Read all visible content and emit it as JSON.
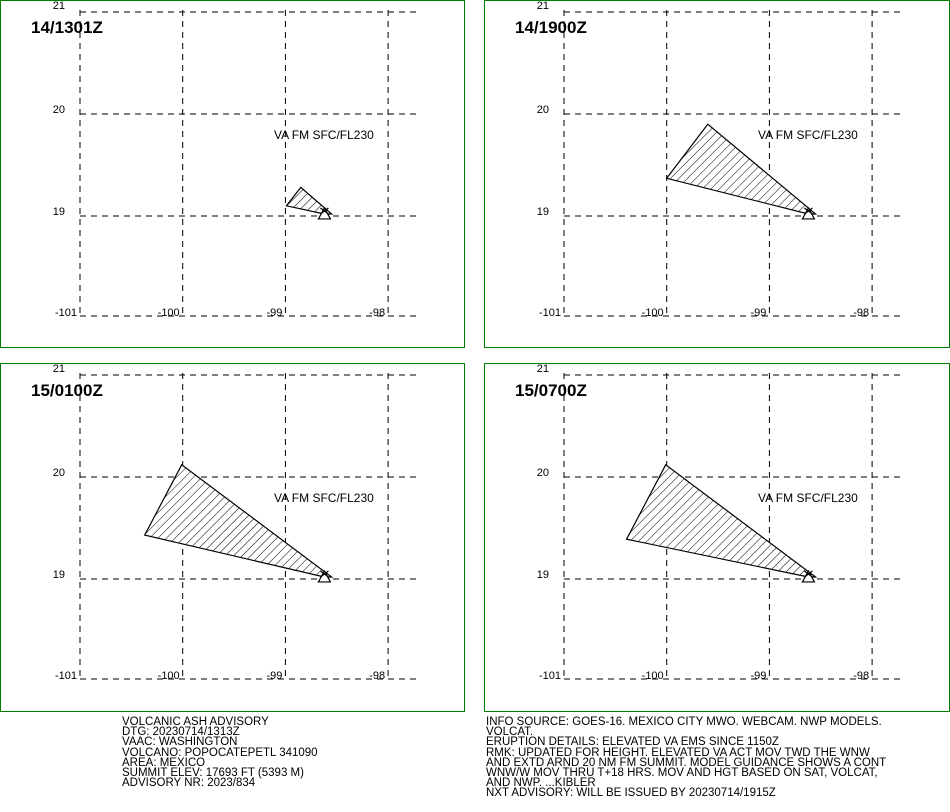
{
  "chart_data": [
    {
      "type": "map",
      "title": "14/1301Z",
      "label": "VA FM SFC/FL230",
      "lon_ticks": [
        "-101",
        "-100",
        "-99",
        "-98"
      ],
      "lat_ticks": [
        "21",
        "20",
        "19"
      ],
      "polygon": [
        [
          -98.99,
          19.1
        ],
        [
          -98.85,
          19.28
        ],
        [
          -98.55,
          19.02
        ],
        [
          -98.62,
          19.02
        ]
      ],
      "volcano": [
        -98.62,
        19.02
      ]
    },
    {
      "type": "map",
      "title": "14/1900Z",
      "label": "VA FM SFC/FL230",
      "lon_ticks": [
        "-101",
        "-100",
        "-99",
        "-98"
      ],
      "lat_ticks": [
        "21",
        "20",
        "19"
      ],
      "polygon": [
        [
          -100.0,
          19.37
        ],
        [
          -99.6,
          19.9
        ],
        [
          -98.55,
          19.02
        ],
        [
          -98.62,
          19.02
        ]
      ],
      "volcano": [
        -98.62,
        19.02
      ]
    },
    {
      "type": "map",
      "title": "15/0100Z",
      "label": "VA FM SFC/FL230",
      "lon_ticks": [
        "-101",
        "-100",
        "-99",
        "-98"
      ],
      "lat_ticks": [
        "21",
        "20",
        "19"
      ],
      "polygon": [
        [
          -100.37,
          19.43
        ],
        [
          -100.01,
          20.12
        ],
        [
          -98.55,
          19.02
        ],
        [
          -98.62,
          19.02
        ]
      ],
      "volcano": [
        -98.62,
        19.02
      ]
    },
    {
      "type": "map",
      "title": "15/0700Z",
      "label": "VA FM SFC/FL230",
      "lon_ticks": [
        "-101",
        "-100",
        "-99",
        "-98"
      ],
      "lat_ticks": [
        "21",
        "20",
        "19"
      ],
      "polygon": [
        [
          -100.39,
          19.39
        ],
        [
          -100.01,
          20.12
        ],
        [
          -98.55,
          19.02
        ],
        [
          -98.62,
          19.02
        ]
      ],
      "volcano": [
        -98.62,
        19.02
      ]
    }
  ],
  "advisory_left": [
    "VOLCANIC ASH ADVISORY",
    "DTG: 20230714/1313Z",
    "VAAC: WASHINGTON",
    "VOLCANO: POPOCATEPETL 341090",
    "AREA: MEXICO",
    "SUMMIT ELEV: 17693 FT (5393 M)",
    "ADVISORY NR: 2023/834"
  ],
  "advisory_right": [
    "INFO SOURCE: GOES-16. MEXICO CITY MWO. WEBCAM. NWP MODELS.",
    "VOLCAT.",
    "ERUPTION DETAILS: ELEVATED VA EMS SINCE 1150Z",
    "RMK: UPDATED FOR HEIGHT. ELEVATED VA ACT MOV TWD THE WNW",
    "AND EXTD ARND 20 NM FM SUMMIT. MODEL GUIDANCE SHOWS A CONT",
    "WNW/W MOV THRU T+18 HRS. MOV AND HGT BASED ON SAT, VOLCAT,",
    "AND NWP. ...KIBLER",
    "NXT ADVISORY: WILL BE ISSUED BY 20230714/1915Z"
  ]
}
